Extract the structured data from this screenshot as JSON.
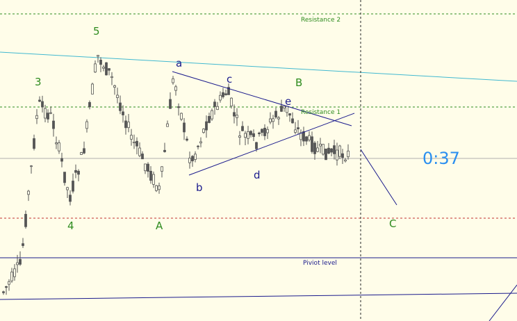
{
  "levels": {
    "resistance_2": "Resistance 2",
    "resistance_1": "Resistance 1",
    "pivot": "Piviot level"
  },
  "timer": "0:37",
  "waves": {
    "w3": "3",
    "w4": "4",
    "w5": "5",
    "A": "A",
    "a": "a",
    "b": "b",
    "c": "c",
    "d": "d",
    "e": "e",
    "B": "B",
    "C": "C"
  }
}
